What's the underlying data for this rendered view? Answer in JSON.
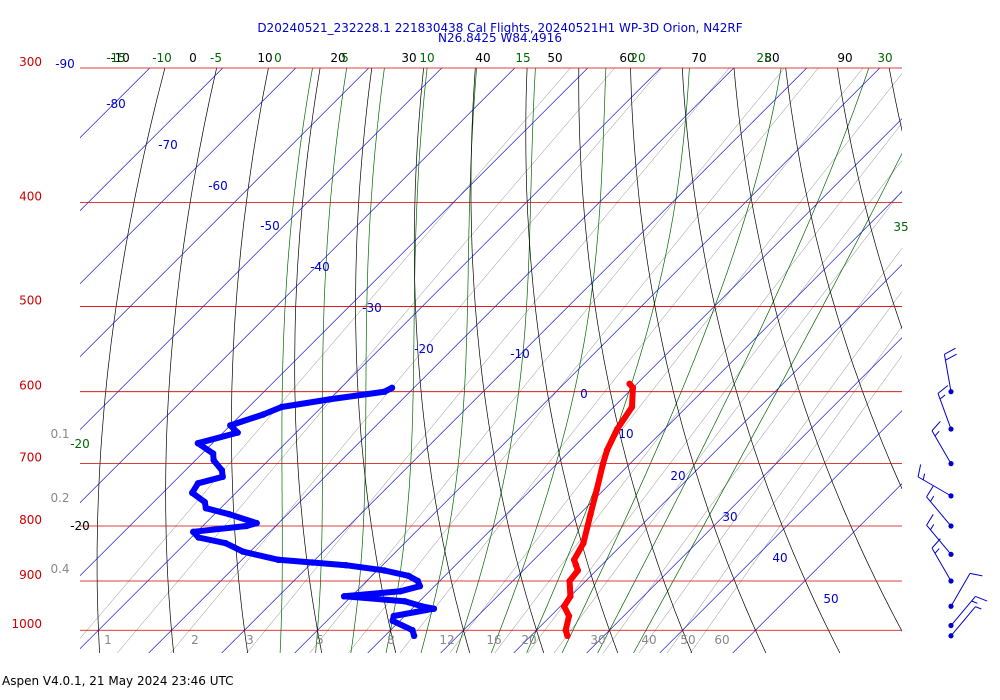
{
  "title_line1": "D20240521_232228.1 221830438 Cal Flights, 20240521H1 WP-3D Orion, N42RF",
  "title_line2": "N26.8425 W84.4916",
  "footer": "Aspen V4.0.1, 21 May 2024  23:46 UTC",
  "colors": {
    "isobar": "#cc0000",
    "isotherm": "#0000cc",
    "dry_adiabat": "#000000",
    "moist_adiabat": "#006600",
    "mixing_ratio": "#888888",
    "temperature": "#ff0000",
    "dewpoint": "#0000ff",
    "wind": "#0000cc"
  },
  "chart_data": {
    "type": "skew-t",
    "pressure_levels": [
      "300",
      "400",
      "500",
      "600",
      "700",
      "800",
      "900",
      "1000"
    ],
    "temperature_labels": [
      "-90",
      "-80",
      "-70",
      "-60",
      "-50",
      "-40",
      "-30",
      "-20",
      "-10",
      "0",
      "10",
      "20",
      "30",
      "40",
      "50"
    ],
    "left_temp_labels": [
      "-20",
      "-20"
    ],
    "theta_labels": [
      "-10",
      "0",
      "10",
      "20",
      "30",
      "40",
      "50",
      "60",
      "70",
      "80",
      "90"
    ],
    "theta_e_labels": [
      "-15",
      "-10",
      "-5",
      "0",
      "5",
      "10",
      "15",
      "20",
      "25",
      "30",
      "35"
    ],
    "mixing_ratio_labels": [
      "1",
      "2",
      "3",
      "5",
      "8",
      "12",
      "16",
      "20",
      "30",
      "40",
      "50",
      "60"
    ],
    "left_ratio_labels": [
      "0.1",
      "0.2",
      "0.4"
    ],
    "temperature_profile": [
      {
        "p": 590,
        "t": -1.0
      },
      {
        "p": 595,
        "t": 0.0
      },
      {
        "p": 620,
        "t": 2.5
      },
      {
        "p": 650,
        "t": 3.5
      },
      {
        "p": 680,
        "t": 5.0
      },
      {
        "p": 700,
        "t": 6.3
      },
      {
        "p": 740,
        "t": 9.0
      },
      {
        "p": 780,
        "t": 11.5
      },
      {
        "p": 830,
        "t": 14.5
      },
      {
        "p": 860,
        "t": 15.5
      },
      {
        "p": 870,
        "t": 16.5
      },
      {
        "p": 880,
        "t": 17.5
      },
      {
        "p": 900,
        "t": 17.8
      },
      {
        "p": 930,
        "t": 20.0
      },
      {
        "p": 950,
        "t": 20.5
      },
      {
        "p": 970,
        "t": 22.5
      },
      {
        "p": 1000,
        "t": 24.0
      },
      {
        "p": 1012,
        "t": 25.0
      }
    ],
    "dewpoint_profile": [
      {
        "p": 595,
        "t": -33.0
      },
      {
        "p": 600,
        "t": -33.5
      },
      {
        "p": 610,
        "t": -40.0
      },
      {
        "p": 620,
        "t": -45.5
      },
      {
        "p": 630,
        "t": -47.0
      },
      {
        "p": 645,
        "t": -50.0
      },
      {
        "p": 655,
        "t": -48.0
      },
      {
        "p": 670,
        "t": -52.0
      },
      {
        "p": 685,
        "t": -48.5
      },
      {
        "p": 695,
        "t": -47.5
      },
      {
        "p": 710,
        "t": -45.0
      },
      {
        "p": 720,
        "t": -44.0
      },
      {
        "p": 730,
        "t": -46.5
      },
      {
        "p": 745,
        "t": -46.0
      },
      {
        "p": 760,
        "t": -43.0
      },
      {
        "p": 770,
        "t": -42.0
      },
      {
        "p": 780,
        "t": -38.0
      },
      {
        "p": 795,
        "t": -33.0
      },
      {
        "p": 800,
        "t": -34.0
      },
      {
        "p": 810,
        "t": -40.5
      },
      {
        "p": 820,
        "t": -39.0
      },
      {
        "p": 830,
        "t": -34.5
      },
      {
        "p": 845,
        "t": -31.0
      },
      {
        "p": 860,
        "t": -25.0
      },
      {
        "p": 865,
        "t": -20.0
      },
      {
        "p": 870,
        "t": -15.0
      },
      {
        "p": 880,
        "t": -9.0
      },
      {
        "p": 890,
        "t": -5.0
      },
      {
        "p": 900,
        "t": -3.0
      },
      {
        "p": 910,
        "t": -2.0
      },
      {
        "p": 920,
        "t": -4.0
      },
      {
        "p": 930,
        "t": -11.0
      },
      {
        "p": 940,
        "t": -2.0
      },
      {
        "p": 950,
        "t": 1.0
      },
      {
        "p": 955,
        "t": 3.0
      },
      {
        "p": 970,
        "t": -1.5
      },
      {
        "p": 980,
        "t": -1.0
      },
      {
        "p": 1000,
        "t": 3.0
      },
      {
        "p": 1012,
        "t": 4.0
      }
    ],
    "wind_barbs": [
      {
        "p": 600,
        "dir": 350,
        "speed": 20
      },
      {
        "p": 650,
        "dir": 340,
        "speed": 15
      },
      {
        "p": 700,
        "dir": 330,
        "speed": 15
      },
      {
        "p": 750,
        "dir": 300,
        "speed": 15
      },
      {
        "p": 800,
        "dir": 320,
        "speed": 15
      },
      {
        "p": 850,
        "dir": 320,
        "speed": 15
      },
      {
        "p": 900,
        "dir": 330,
        "speed": 15
      },
      {
        "p": 950,
        "dir": 30,
        "speed": 10
      },
      {
        "p": 990,
        "dir": 40,
        "speed": 15
      },
      {
        "p": 1012,
        "dir": 40,
        "speed": 5
      }
    ],
    "xlim": [
      -40,
      40
    ],
    "ylim": [
      300,
      1050
    ],
    "yscale": "log",
    "skew": "45-degree"
  }
}
